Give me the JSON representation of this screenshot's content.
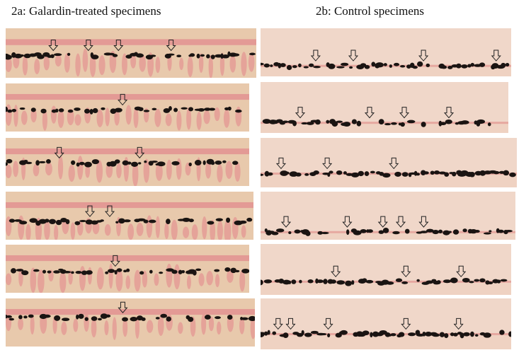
{
  "panels": {
    "a": {
      "title": "2a: Galardin-treated specimens",
      "tissue_color": "#e8c9ac",
      "band_color": "#e39a95",
      "stain_color": "#1a1412"
    },
    "b": {
      "title": "2b: Control specimens",
      "tissue_color": "#efd2c2",
      "band_color": "#e6a8a0",
      "stain_color": "#1a1412"
    }
  },
  "marker_icon": "hollow-arrow-down-icon"
}
